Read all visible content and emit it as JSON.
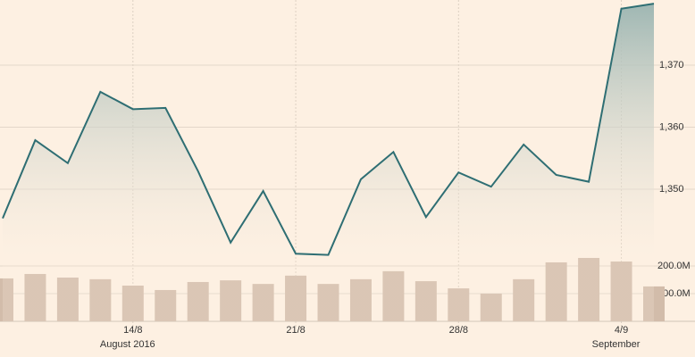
{
  "chart_data": {
    "type": "line",
    "categories": [
      null,
      null,
      null,
      null,
      "14/8",
      null,
      null,
      null,
      null,
      "21/8",
      null,
      null,
      null,
      null,
      "28/8",
      null,
      null,
      null,
      null,
      "4/9",
      null
    ],
    "annotations": [
      "August 2016",
      "September"
    ],
    "series": [
      {
        "color": "#2e6e73",
        "values": [
          1345.3,
          1357.9,
          1354.2,
          1365.7,
          1362.9,
          1363.1,
          1352.9,
          1341.4,
          1349.7,
          1339.6,
          1339.4,
          1351.6,
          1356.0,
          1345.5,
          1352.7,
          1350.4,
          1357.2,
          1352.3,
          1351.2,
          1379.1,
          1379.9
        ]
      },
      {
        "type": "bar",
        "axis": "y2",
        "color": "#d2bcaa",
        "values": [
          155,
          171,
          158,
          152,
          129,
          113,
          142,
          148,
          135,
          165,
          135,
          152,
          181,
          145,
          119,
          100,
          152,
          213,
          229,
          216,
          126
        ]
      }
    ],
    "ylim": [
      1328.7,
      1380.5
    ],
    "yticks": [
      {
        "value": 1350,
        "label": "1,350"
      },
      {
        "value": 1360,
        "label": "1,360"
      },
      {
        "value": 1370,
        "label": "1,370"
      }
    ],
    "y2lim": [
      0,
      1161
    ],
    "y2ticks": [
      {
        "value": 100,
        "label": "100.0M"
      },
      {
        "value": 200,
        "label": "200.0M"
      }
    ],
    "grid": true
  }
}
